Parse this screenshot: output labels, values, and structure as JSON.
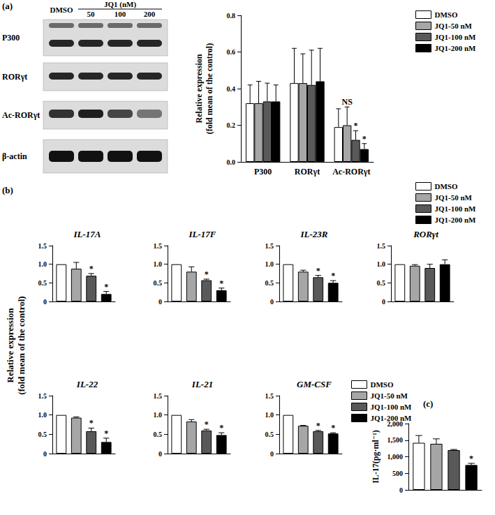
{
  "panel_labels": [
    "(a)",
    "(b)",
    "(c)"
  ],
  "blot": {
    "treatment": "JQ1 (nM)",
    "lanes": [
      "DMSO",
      "50",
      "100",
      "200"
    ],
    "rows": [
      "P300",
      "RORγt",
      "Ac-RORγt",
      "β-actin"
    ]
  },
  "chart_data": [
    {
      "type": "bar",
      "y_label": "Relative expression\n(fold mean of the control)",
      "categories": [
        "P300",
        "RORγt",
        "Ac-RORγt"
      ],
      "ylim": [
        0,
        0.8
      ],
      "yticks": [
        {
          "value": 0,
          "label": "0.0"
        },
        0.2,
        0.4,
        0.6,
        0.8
      ],
      "grid": false,
      "legend": "right",
      "series": [
        {
          "name": "DMSO",
          "color": "#ffffff",
          "values": [
            0.32,
            0.43,
            0.19
          ],
          "errors": [
            0.1,
            0.19,
            0.1
          ]
        },
        {
          "name": "JQ1-50 nM",
          "color": "#a6a6a6",
          "values": [
            0.32,
            0.43,
            0.2
          ],
          "errors": [
            0.12,
            0.16,
            0.1
          ],
          "significance": [
            null,
            null,
            "NS"
          ]
        },
        {
          "name": "JQ1-100 nM",
          "color": "#595959",
          "values": [
            0.33,
            0.42,
            0.12
          ],
          "errors": [
            0.1,
            0.19,
            0.05
          ],
          "significance": [
            null,
            null,
            "*"
          ]
        },
        {
          "name": "JQ1-200 nM",
          "color": "#000000",
          "values": [
            0.33,
            0.44,
            0.07
          ],
          "errors": [
            0.09,
            0.18,
            0.03
          ],
          "significance": [
            null,
            null,
            "*"
          ]
        }
      ]
    },
    {
      "type": "bar",
      "title": "IL-17A",
      "y_label": "Relative expression\n(fold mean of the control)",
      "categories": [
        null
      ],
      "ylim": [
        0,
        1.5
      ],
      "yticks": [
        0,
        0.5,
        {
          "value": 1,
          "label": "1.0"
        },
        1.5
      ],
      "grid": false,
      "series": [
        {
          "name": "DMSO",
          "color": "#ffffff",
          "values": [
            1.0
          ],
          "errors": [
            0
          ]
        },
        {
          "name": "JQ1-50 nM",
          "color": "#a6a6a6",
          "values": [
            0.88
          ],
          "errors": [
            0.17
          ]
        },
        {
          "name": "JQ1-100 nM",
          "color": "#595959",
          "values": [
            0.69
          ],
          "errors": [
            0.06
          ],
          "significance": [
            "*"
          ]
        },
        {
          "name": "JQ1-200 nM",
          "color": "#000000",
          "values": [
            0.2
          ],
          "errors": [
            0.07
          ],
          "significance": [
            "*"
          ]
        }
      ]
    },
    {
      "type": "bar",
      "title": "IL-17F",
      "categories": [
        null
      ],
      "ylim": [
        0,
        1.5
      ],
      "yticks": [
        0,
        0.5,
        {
          "value": 1,
          "label": "1.0"
        },
        1.5
      ],
      "grid": false,
      "series": [
        {
          "name": "DMSO",
          "color": "#ffffff",
          "values": [
            1.0
          ],
          "errors": [
            0
          ]
        },
        {
          "name": "JQ1-50 nM",
          "color": "#a6a6a6",
          "values": [
            0.8
          ],
          "errors": [
            0.13
          ]
        },
        {
          "name": "JQ1-100 nM",
          "color": "#595959",
          "values": [
            0.57
          ],
          "errors": [
            0.03
          ],
          "significance": [
            "*"
          ]
        },
        {
          "name": "JQ1-200 nM",
          "color": "#000000",
          "values": [
            0.3
          ],
          "errors": [
            0.06
          ],
          "significance": [
            "*"
          ]
        }
      ]
    },
    {
      "type": "bar",
      "title": "IL-23R",
      "categories": [
        null
      ],
      "ylim": [
        0,
        1.5
      ],
      "yticks": [
        0,
        0.5,
        {
          "value": 1,
          "label": "1.0"
        },
        1.5
      ],
      "grid": false,
      "series": [
        {
          "name": "DMSO",
          "color": "#ffffff",
          "values": [
            1.0
          ],
          "errors": [
            0
          ]
        },
        {
          "name": "JQ1-50 nM",
          "color": "#a6a6a6",
          "values": [
            0.8
          ],
          "errors": [
            0.04
          ]
        },
        {
          "name": "JQ1-100 nM",
          "color": "#595959",
          "values": [
            0.65
          ],
          "errors": [
            0.05
          ],
          "significance": [
            "*"
          ]
        },
        {
          "name": "JQ1-200 nM",
          "color": "#000000",
          "values": [
            0.5
          ],
          "errors": [
            0.06
          ],
          "significance": [
            "*"
          ]
        }
      ]
    },
    {
      "type": "bar",
      "title": "RORγt",
      "categories": [
        null
      ],
      "ylim": [
        0,
        1.5
      ],
      "yticks": [
        0,
        0.5,
        {
          "value": 1,
          "label": "1.0"
        },
        1.5
      ],
      "grid": false,
      "legend": "top right",
      "series": [
        {
          "name": "DMSO",
          "color": "#ffffff",
          "values": [
            1.0
          ],
          "errors": [
            0
          ]
        },
        {
          "name": "JQ1-50 nM",
          "color": "#a6a6a6",
          "values": [
            0.96
          ],
          "errors": [
            0.03
          ]
        },
        {
          "name": "JQ1-100 nM",
          "color": "#595959",
          "values": [
            0.9
          ],
          "errors": [
            0.1
          ]
        },
        {
          "name": "JQ1-200 nM",
          "color": "#000000",
          "values": [
            1.0
          ],
          "errors": [
            0.12
          ]
        }
      ]
    },
    {
      "type": "bar",
      "title": "IL-22",
      "categories": [
        null
      ],
      "ylim": [
        0,
        1.5
      ],
      "yticks": [
        0,
        0.5,
        {
          "value": 1,
          "label": "1.0"
        },
        1.5
      ],
      "grid": false,
      "series": [
        {
          "name": "DMSO",
          "color": "#ffffff",
          "values": [
            1.0
          ],
          "errors": [
            0
          ]
        },
        {
          "name": "JQ1-50 nM",
          "color": "#a6a6a6",
          "values": [
            0.93
          ],
          "errors": [
            0.02
          ]
        },
        {
          "name": "JQ1-100 nM",
          "color": "#595959",
          "values": [
            0.58
          ],
          "errors": [
            0.08
          ],
          "significance": [
            "*"
          ]
        },
        {
          "name": "JQ1-200 nM",
          "color": "#000000",
          "values": [
            0.3
          ],
          "errors": [
            0.1
          ],
          "significance": [
            "*"
          ]
        }
      ]
    },
    {
      "type": "bar",
      "title": "IL-21",
      "categories": [
        null
      ],
      "ylim": [
        0,
        1.5
      ],
      "yticks": [
        0,
        0.5,
        {
          "value": 1,
          "label": "1.0"
        },
        1.5
      ],
      "grid": false,
      "series": [
        {
          "name": "DMSO",
          "color": "#ffffff",
          "values": [
            1.0
          ],
          "errors": [
            0
          ]
        },
        {
          "name": "JQ1-50 nM",
          "color": "#a6a6a6",
          "values": [
            0.83
          ],
          "errors": [
            0.05
          ]
        },
        {
          "name": "JQ1-100 nM",
          "color": "#595959",
          "values": [
            0.6
          ],
          "errors": [
            0.03
          ],
          "significance": [
            "*"
          ]
        },
        {
          "name": "JQ1-200 nM",
          "color": "#000000",
          "values": [
            0.48
          ],
          "errors": [
            0.06
          ],
          "significance": [
            "*"
          ]
        }
      ]
    },
    {
      "type": "bar",
      "title": "GM-CSF",
      "categories": [
        null
      ],
      "ylim": [
        0,
        1.5
      ],
      "yticks": [
        0,
        0.5,
        {
          "value": 1,
          "label": "1.0"
        },
        1.5
      ],
      "grid": false,
      "series": [
        {
          "name": "DMSO",
          "color": "#ffffff",
          "values": [
            1.0
          ],
          "errors": [
            0
          ]
        },
        {
          "name": "JQ1-50 nM",
          "color": "#a6a6a6",
          "values": [
            0.72
          ],
          "errors": [
            0.01
          ]
        },
        {
          "name": "JQ1-100 nM",
          "color": "#595959",
          "values": [
            0.58
          ],
          "errors": [
            0.02
          ],
          "significance": [
            "*"
          ]
        },
        {
          "name": "JQ1-200 nM",
          "color": "#000000",
          "values": [
            0.52
          ],
          "errors": [
            0.02
          ],
          "significance": [
            "*"
          ]
        }
      ]
    },
    {
      "type": "bar",
      "y_label": "IL-17(pg·ml⁻¹)",
      "categories": [
        null
      ],
      "ylim": [
        0,
        2000
      ],
      "yticks": [
        0,
        500,
        {
          "value": 1000,
          "label": "1,000"
        },
        {
          "value": 1500,
          "label": "1,500"
        },
        {
          "value": 2000,
          "label": "2,000"
        }
      ],
      "grid": false,
      "legend": "top left",
      "series": [
        {
          "name": "DMSO",
          "color": "#ffffff",
          "values": [
            1420
          ],
          "errors": [
            220
          ]
        },
        {
          "name": "JQ1-50 nM",
          "color": "#a6a6a6",
          "values": [
            1390
          ],
          "errors": [
            150
          ]
        },
        {
          "name": "JQ1-100 nM",
          "color": "#595959",
          "values": [
            1200
          ],
          "errors": [
            20
          ]
        },
        {
          "name": "JQ1-200 nM",
          "color": "#000000",
          "values": [
            750
          ],
          "errors": [
            50
          ],
          "significance": [
            "*"
          ]
        }
      ]
    }
  ]
}
